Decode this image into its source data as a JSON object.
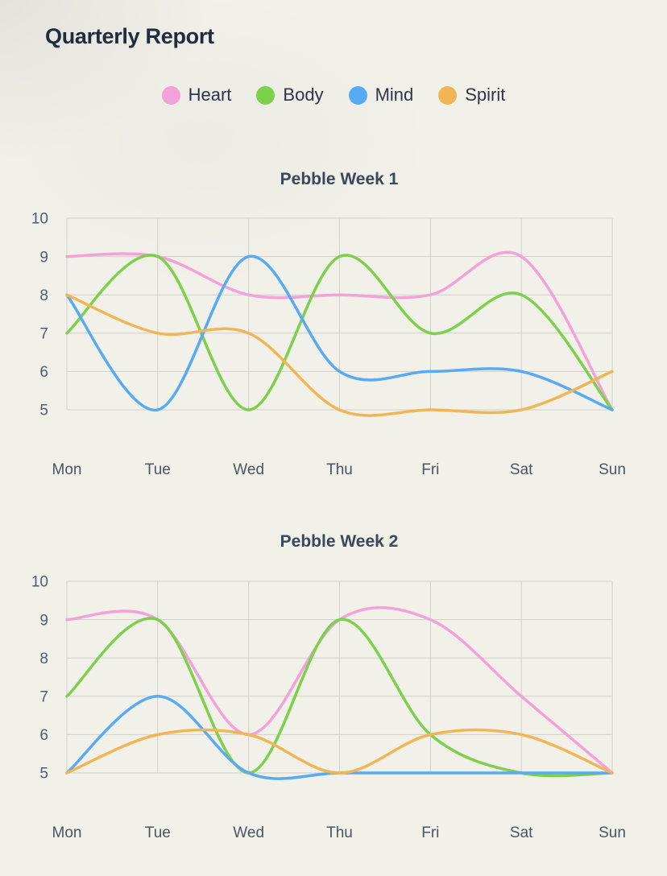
{
  "page": {
    "title": "Quarterly Report"
  },
  "legend": {
    "items": [
      {
        "label": "Heart",
        "color": "#f2a2d8"
      },
      {
        "label": "Body",
        "color": "#7dd04b"
      },
      {
        "label": "Mind",
        "color": "#58aaf2"
      },
      {
        "label": "Spirit",
        "color": "#f0b656"
      }
    ]
  },
  "chart_data": [
    {
      "type": "line",
      "title": "Pebble Week 1",
      "categories": [
        "Mon",
        "Tue",
        "Wed",
        "Thu",
        "Fri",
        "Sat",
        "Sun"
      ],
      "ylim": [
        5,
        10
      ],
      "yticks": [
        10,
        9,
        8,
        7,
        6,
        5
      ],
      "grid": true,
      "line_style": "smooth",
      "legend_position": "top",
      "series": [
        {
          "name": "Heart",
          "color": "#f2a2d8",
          "values": [
            9,
            9,
            8,
            8,
            8,
            9,
            5
          ]
        },
        {
          "name": "Body",
          "color": "#7dd04b",
          "values": [
            7,
            9,
            5,
            9,
            7,
            8,
            5
          ]
        },
        {
          "name": "Mind",
          "color": "#58aaf2",
          "values": [
            8,
            5,
            9,
            6,
            6,
            6,
            5
          ]
        },
        {
          "name": "Spirit",
          "color": "#f0b656",
          "values": [
            8,
            7,
            7,
            5,
            5,
            5,
            6
          ]
        }
      ]
    },
    {
      "type": "line",
      "title": "Pebble Week 2",
      "categories": [
        "Mon",
        "Tue",
        "Wed",
        "Thu",
        "Fri",
        "Sat",
        "Sun"
      ],
      "ylim": [
        5,
        10
      ],
      "yticks": [
        10,
        9,
        8,
        7,
        6,
        5
      ],
      "grid": true,
      "line_style": "smooth",
      "legend_position": "top",
      "series": [
        {
          "name": "Heart",
          "color": "#f2a2d8",
          "values": [
            9,
            9,
            6,
            9,
            9,
            7,
            5
          ]
        },
        {
          "name": "Body",
          "color": "#7dd04b",
          "values": [
            7,
            9,
            5,
            9,
            6,
            5,
            5
          ]
        },
        {
          "name": "Mind",
          "color": "#58aaf2",
          "values": [
            5,
            7,
            5,
            5,
            5,
            5,
            5
          ]
        },
        {
          "name": "Spirit",
          "color": "#f0b656",
          "values": [
            5,
            6,
            6,
            5,
            6,
            6,
            5
          ]
        }
      ]
    }
  ]
}
